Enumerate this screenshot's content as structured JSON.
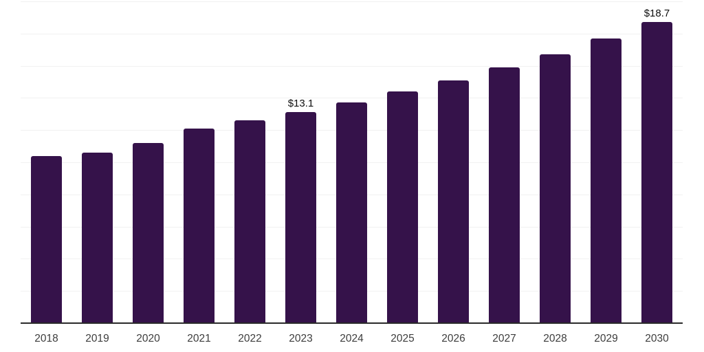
{
  "chart_data": {
    "type": "bar",
    "title": "",
    "xlabel": "",
    "ylabel": "",
    "categories": [
      "2018",
      "2019",
      "2020",
      "2021",
      "2022",
      "2023",
      "2024",
      "2025",
      "2026",
      "2027",
      "2028",
      "2029",
      "2030"
    ],
    "values": [
      10.4,
      10.6,
      11.2,
      12.1,
      12.6,
      13.1,
      13.7,
      14.4,
      15.1,
      15.9,
      16.7,
      17.7,
      18.7
    ],
    "data_labels": {
      "2023": "$13.1",
      "2030": "$18.7"
    },
    "currency_prefix": "$",
    "ylim": [
      0,
      20
    ],
    "gridline_step": 2,
    "grid": "horizontal",
    "legend": "none",
    "colors": {
      "bar": "#35124A",
      "gridline": "#f1f1f1",
      "axis_line": "#2a2a2a",
      "tick_label": "#3d3d3d",
      "data_label": "#0d0d0d",
      "background": "#ffffff"
    }
  }
}
